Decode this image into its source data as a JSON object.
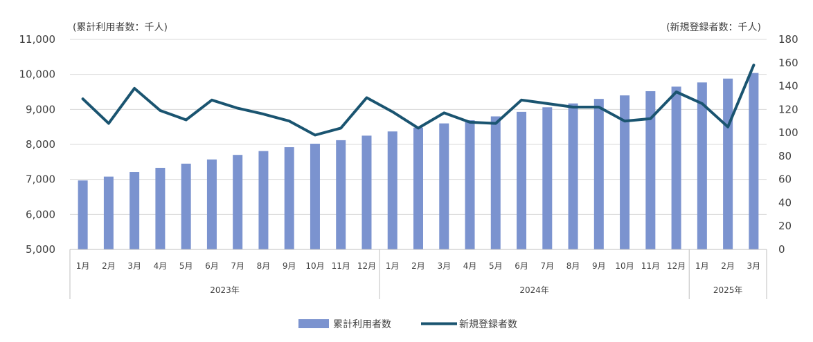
{
  "chart_data": {
    "type": "bar+line",
    "left_axis_title": "(累計利用者数：千人)",
    "right_axis_title": "(新規登録者数：千人)",
    "left_ticks": [
      "11,000",
      "10,000",
      "9,000",
      "8,000",
      "7,000",
      "6,000",
      "5,000"
    ],
    "right_ticks": [
      "180",
      "160",
      "140",
      "120",
      "100",
      "80",
      "60",
      "40",
      "20",
      "0"
    ],
    "ylim_left": [
      5000,
      11000
    ],
    "ylim_right": [
      0,
      180
    ],
    "categories": [
      "1月",
      "2月",
      "3月",
      "4月",
      "5月",
      "6月",
      "7月",
      "8月",
      "9月",
      "10月",
      "11月",
      "12月",
      "1月",
      "2月",
      "3月",
      "4月",
      "5月",
      "6月",
      "7月",
      "8月",
      "9月",
      "10月",
      "11月",
      "12月",
      "1月",
      "2月",
      "3月"
    ],
    "year_groups": [
      {
        "label": "2023年",
        "count": 12
      },
      {
        "label": "2024年",
        "count": 12
      },
      {
        "label": "2025年",
        "count": 3
      }
    ],
    "series": [
      {
        "name": "累計利用者数",
        "type": "bar",
        "axis": "left",
        "color": "#7b93cf",
        "values": [
          6970,
          7080,
          7210,
          7330,
          7450,
          7570,
          7700,
          7810,
          7920,
          8020,
          8120,
          8250,
          8370,
          8480,
          8600,
          8690,
          8800,
          8930,
          9060,
          9170,
          9300,
          9400,
          9520,
          9650,
          9770,
          9880,
          10040
        ]
      },
      {
        "name": "新規登録者数",
        "type": "line",
        "axis": "right",
        "color": "#1a5470",
        "values": [
          129,
          108,
          138,
          119,
          111,
          128,
          121,
          116,
          110,
          98,
          104,
          130,
          118,
          104,
          117,
          109,
          108,
          128,
          125,
          122,
          122,
          110,
          112,
          135,
          125,
          105,
          158
        ]
      }
    ],
    "legend_position": "bottom"
  }
}
